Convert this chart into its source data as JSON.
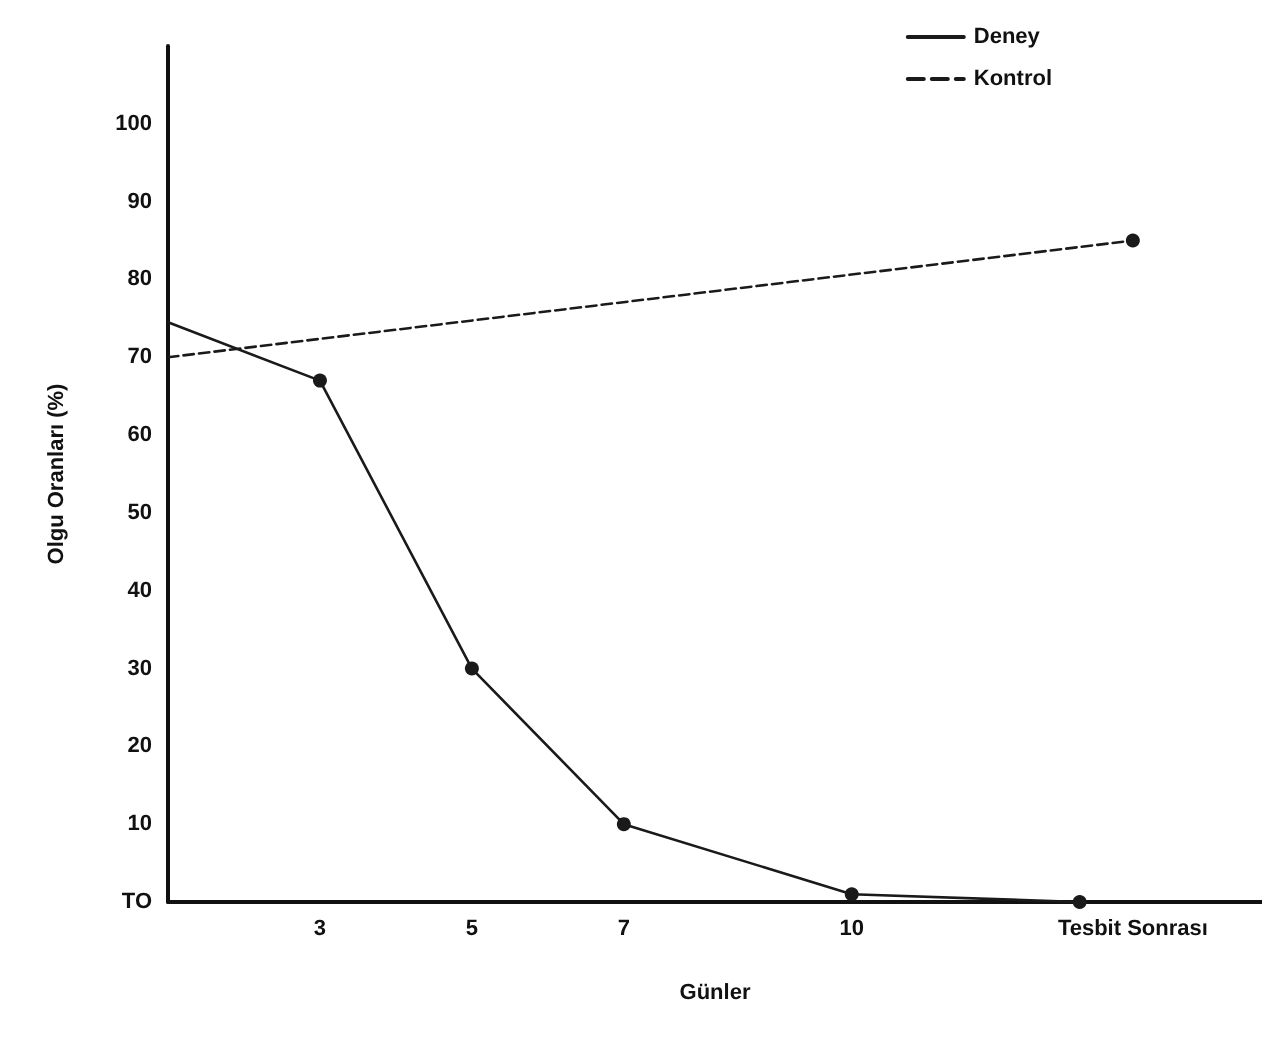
{
  "chart_data": {
    "type": "line",
    "xlabel": "Günler",
    "ylabel": "Olgu Oranları (%)",
    "xlim": [
      1,
      15.4
    ],
    "xticks": [
      3,
      5,
      7,
      10,
      {
        "value": 13.7,
        "label": "Tesbit Sonrası"
      }
    ],
    "ylim": [
      0,
      110
    ],
    "yticks": [
      {
        "value": 0,
        "label": "TO"
      },
      10,
      20,
      30,
      40,
      50,
      60,
      70,
      80,
      90,
      100
    ],
    "series": [
      {
        "name": "Deney",
        "color": "#1a1a1a",
        "line_style": "solid",
        "x": [
          1,
          3,
          5,
          7,
          10,
          13
        ],
        "values": [
          74.5,
          67,
          30,
          10,
          1,
          0
        ]
      },
      {
        "name": "Kontrol",
        "color": "#1a1a1a",
        "line_style": "dashed",
        "x": [
          1,
          13.7
        ],
        "values": [
          70,
          85
        ]
      }
    ],
    "marker": "circle",
    "grid": false,
    "legend": "top right"
  }
}
